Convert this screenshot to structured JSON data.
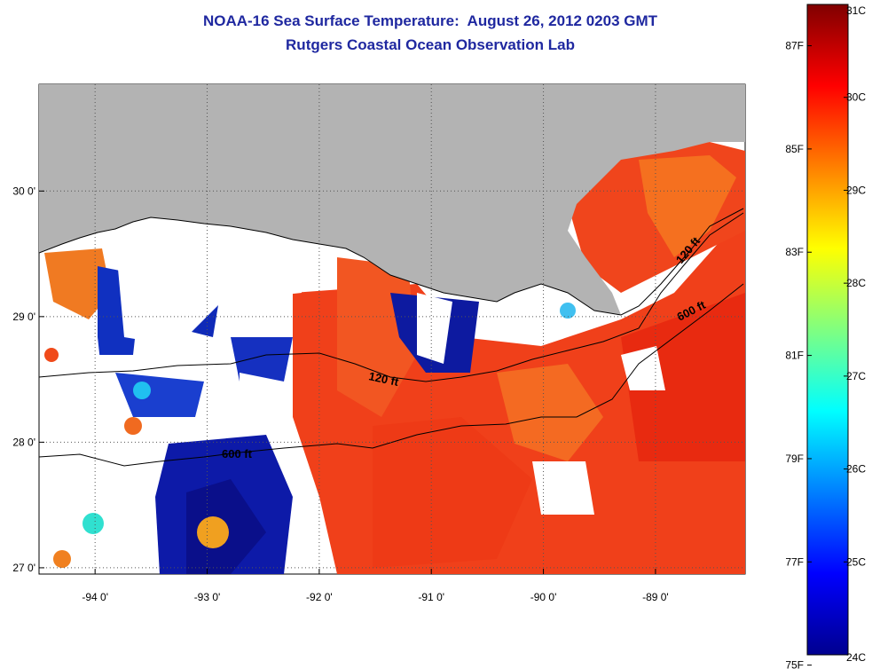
{
  "title_line1": "NOAA-16 Sea Surface Temperature:  August 26, 2012 0203 GMT",
  "title_line2": "Rutgers Coastal Ocean Observation Lab",
  "chart_data": {
    "type": "heatmap",
    "title": "NOAA-16 Sea Surface Temperature:  August 26, 2012 0203 GMT",
    "subtitle": "Rutgers Coastal Ocean Observation Lab",
    "x_ticks": [
      "-94 0'",
      "-93 0'",
      "-92 0'",
      "-91 0'",
      "-90 0'",
      "-89 0'"
    ],
    "x_tick_values": [
      -94,
      -93,
      -92,
      -91,
      -90,
      -89
    ],
    "y_ticks": [
      "30 0'",
      "29 0'",
      "28 0'",
      "27 0'"
    ],
    "y_tick_values": [
      30,
      29,
      28,
      27
    ],
    "xlim": [
      -94.5,
      -88.2
    ],
    "ylim": [
      26.95,
      30.85
    ],
    "grid": true,
    "colorbar": {
      "range_celsius": [
        24,
        31
      ],
      "celsius_labels": [
        "31C",
        "30C",
        "29C",
        "28C",
        "27C",
        "26C",
        "25C",
        "24C"
      ],
      "celsius_values": [
        31,
        30,
        29,
        28,
        27,
        26,
        25,
        24
      ],
      "fahrenheit_labels": [
        "87F",
        "85F",
        "83F",
        "81F",
        "79F",
        "77F",
        "75F"
      ],
      "fahrenheit_values": [
        87,
        85,
        83,
        81,
        79,
        77,
        75
      ],
      "colormap": "jet"
    },
    "contours": [
      {
        "label": "120 ft",
        "depth_ft": 120
      },
      {
        "label": "600 ft",
        "depth_ft": 600
      },
      {
        "label": "120 ft",
        "depth_ft": 120
      },
      {
        "label": "600 ft",
        "depth_ft": 600
      }
    ],
    "colors": {
      "land": "#b3b3b3",
      "no_data": "#ffffff",
      "title": "#1f28a0"
    }
  }
}
